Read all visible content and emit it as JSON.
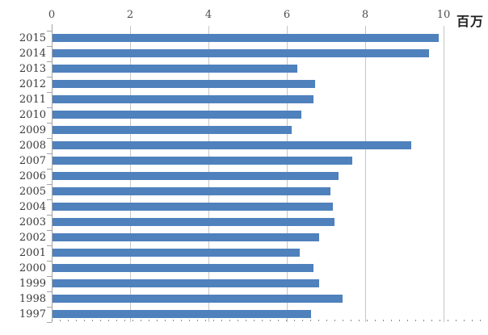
{
  "chart_data": {
    "type": "bar",
    "orientation": "horizontal",
    "title": "",
    "unit_label": "百万",
    "categories": [
      "2015",
      "2014",
      "2013",
      "2012",
      "2011",
      "2010",
      "2009",
      "2008",
      "2007",
      "2006",
      "2005",
      "2004",
      "2003",
      "2002",
      "2001",
      "2000",
      "1999",
      "1998",
      "1997"
    ],
    "values": [
      9.85,
      9.6,
      6.25,
      6.7,
      6.65,
      6.35,
      6.1,
      9.15,
      7.65,
      7.3,
      7.1,
      7.15,
      7.2,
      6.8,
      6.3,
      6.65,
      6.8,
      7.4,
      6.6
    ],
    "x_ticks": [
      "0",
      "2",
      "4",
      "6",
      "8",
      "10"
    ],
    "xlim": [
      0,
      10
    ],
    "grid": "vertical-major",
    "legend": "none",
    "bar_color": "#4f81bd",
    "gridline_color": "#c6c6c6",
    "axis_color": "#a3a3a3",
    "tick_label_color": "#4d4d4d",
    "category_label_color": "#3b3b3b"
  }
}
